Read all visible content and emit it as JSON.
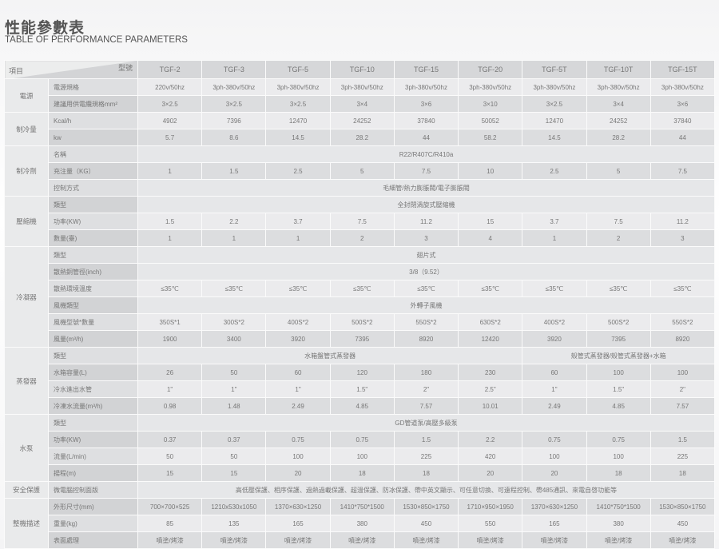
{
  "title": "性能參數表",
  "subtitle": "TABLE OF PERFORMANCE PARAMETERS",
  "header": {
    "item_label": "項目",
    "model_label": "型號",
    "models": [
      "TGF-2",
      "TGF-3",
      "TGF-5",
      "TGF-10",
      "TGF-15",
      "TGF-20",
      "TGF-5T",
      "TGF-10T",
      "TGF-15T"
    ]
  },
  "groups": [
    {
      "name": "電源",
      "rows": [
        {
          "label": "電源規格",
          "values": [
            "220v/50hz",
            "3ph-380v/50hz",
            "3ph-380v/50hz",
            "3ph-380v/50hz",
            "3ph-380v/50hz",
            "3ph-380v/50hz",
            "3ph-380v/50hz",
            "3ph-380v/50hz",
            "3ph-380v/50hz"
          ]
        },
        {
          "label": "建議用供電纜規格mm²",
          "values": [
            "3×2.5",
            "3×2.5",
            "3×2.5",
            "3×4",
            "3×6",
            "3×10",
            "3×2.5",
            "3×4",
            "3×6"
          ]
        }
      ]
    },
    {
      "name": "制冷量",
      "rows": [
        {
          "label": "Kcal/h",
          "values": [
            "4902",
            "7396",
            "12470",
            "24252",
            "37840",
            "50052",
            "12470",
            "24252",
            "37840"
          ]
        },
        {
          "label": "kw",
          "values": [
            "5.7",
            "8.6",
            "14.5",
            "28.2",
            "44",
            "58.2",
            "14.5",
            "28.2",
            "44"
          ]
        }
      ]
    },
    {
      "name": "制冷劑",
      "rows": [
        {
          "label": "名稱",
          "merged": "R22/R407C/R410a"
        },
        {
          "label": "充注量（KG）",
          "values": [
            "1",
            "1.5",
            "2.5",
            "5",
            "7.5",
            "10",
            "2.5",
            "5",
            "7.5"
          ]
        },
        {
          "label": "控制方式",
          "merged": "毛細管/熱力膨脹閥/電子膨脹閥"
        }
      ]
    },
    {
      "name": "壓縮機",
      "rows": [
        {
          "label": "類型",
          "merged": "全封閉渦旋式壓縮機"
        },
        {
          "label": "功率(KW)",
          "values": [
            "1.5",
            "2.2",
            "3.7",
            "7.5",
            "11.2",
            "15",
            "3.7",
            "7.5",
            "11.2"
          ]
        },
        {
          "label": "數量(臺)",
          "values": [
            "1",
            "1",
            "1",
            "2",
            "3",
            "4",
            "1",
            "2",
            "3"
          ]
        }
      ]
    },
    {
      "name": "冷凝器",
      "rows": [
        {
          "label": "類型",
          "merged": "翅片式"
        },
        {
          "label": "散熱銅管徑(inch)",
          "merged": "3/8（9.52）"
        },
        {
          "label": "散熱環境溫度",
          "values": [
            "≤35℃",
            "≤35℃",
            "≤35℃",
            "≤35℃",
            "≤35℃",
            "≤35℃",
            "≤35℃",
            "≤35℃",
            "≤35℃"
          ]
        },
        {
          "label": "風機類型",
          "merged": "外轉子風機"
        },
        {
          "label": "風機型號*數量",
          "values": [
            "350S*1",
            "300S*2",
            "400S*2",
            "500S*2",
            "550S*2",
            "630S*2",
            "400S*2",
            "500S*2",
            "550S*2"
          ]
        },
        {
          "label": "風量(m³/h)",
          "values": [
            "1900",
            "3400",
            "3920",
            "7395",
            "8920",
            "12420",
            "3920",
            "7395",
            "8920"
          ]
        }
      ]
    },
    {
      "name": "蒸發器",
      "rows": [
        {
          "label": "類型",
          "split": [
            "水箱盤管式蒸發器",
            "殼管式蒸發器/殼管式蒸發器+水箱"
          ]
        },
        {
          "label": "水箱容量(L)",
          "values": [
            "26",
            "50",
            "60",
            "120",
            "180",
            "230",
            "60",
            "100",
            "100"
          ]
        },
        {
          "label": "冷水進出水管",
          "values": [
            "1\"",
            "1\"",
            "1\"",
            "1.5\"",
            "2\"",
            "2.5\"",
            "1\"",
            "1.5\"",
            "2\""
          ]
        },
        {
          "label": "冷凍水流量(m³/h)",
          "values": [
            "0.98",
            "1.48",
            "2.49",
            "4.85",
            "7.57",
            "10.01",
            "2.49",
            "4.85",
            "7.57"
          ]
        }
      ]
    },
    {
      "name": "水泵",
      "rows": [
        {
          "label": "類型",
          "merged": "GD管道泵/高壓多級泵"
        },
        {
          "label": "功率(KW)",
          "values": [
            "0.37",
            "0.37",
            "0.75",
            "0.75",
            "1.5",
            "2.2",
            "0.75",
            "0.75",
            "1.5"
          ]
        },
        {
          "label": "流量(L/min)",
          "values": [
            "50",
            "50",
            "100",
            "100",
            "225",
            "420",
            "100",
            "100",
            "225"
          ]
        },
        {
          "label": "揚程(m)",
          "values": [
            "15",
            "15",
            "20",
            "18",
            "18",
            "20",
            "20",
            "18",
            "18"
          ]
        }
      ]
    },
    {
      "name": "安全保護",
      "rows": [
        {
          "label": "微電腦控制面版",
          "merged": "高低壓保護、相序保護、過熱過載保護、超溫保護、防冰保護、帶中英文顯示、可任意切換、可遠程控制、帶485通訊、來電自啓功能等"
        }
      ]
    },
    {
      "name": "整機描述",
      "rows": [
        {
          "label": "外形尺寸(mm)",
          "values": [
            "700×700×525",
            "1210x530x1050",
            "1370×630×1250",
            "1410*750*1500",
            "1530×850×1750",
            "1710×950×1950",
            "1370×630×1250",
            "1410*750*1500",
            "1530×850×1750"
          ]
        },
        {
          "label": "重量(kg)",
          "values": [
            "85",
            "135",
            "165",
            "380",
            "450",
            "550",
            "165",
            "380",
            "450"
          ]
        },
        {
          "label": "表面處理",
          "values": [
            "噴塗/烤漆",
            "噴塗/烤漆",
            "噴塗/烤漆",
            "噴塗/烤漆",
            "噴塗/烤漆",
            "噴塗/烤漆",
            "噴塗/烤漆",
            "噴塗/烤漆",
            "噴塗/烤漆"
          ]
        }
      ]
    }
  ]
}
